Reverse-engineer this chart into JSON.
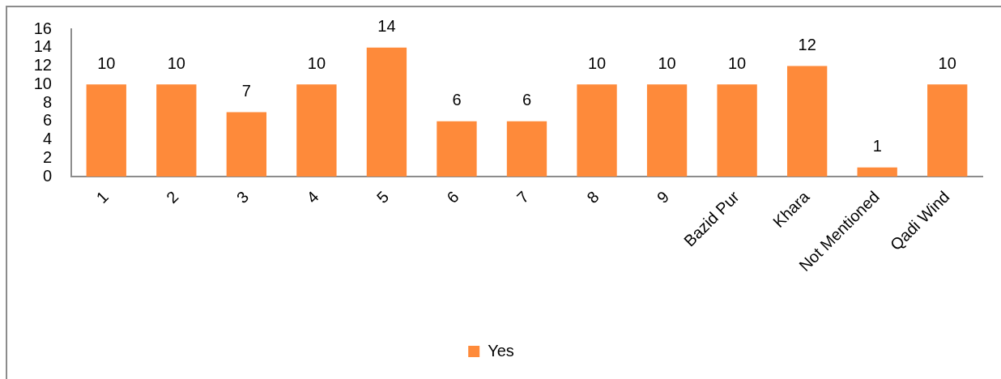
{
  "chart_data": {
    "type": "bar",
    "categories": [
      "1",
      "2",
      "3",
      "4",
      "5",
      "6",
      "7",
      "8",
      "9",
      "Bazid Pur",
      "Khara",
      "Not Mentioned",
      "Qadi Wind"
    ],
    "series": [
      {
        "name": "Yes",
        "color": "#fe8a3a",
        "values": [
          10,
          10,
          7,
          10,
          14,
          6,
          6,
          10,
          10,
          10,
          12,
          1,
          10
        ]
      }
    ],
    "ylim": [
      0,
      16
    ],
    "yticks": [
      0,
      2,
      4,
      6,
      8,
      10,
      12,
      14,
      16
    ],
    "data_labels": true,
    "legend": "bottom"
  }
}
